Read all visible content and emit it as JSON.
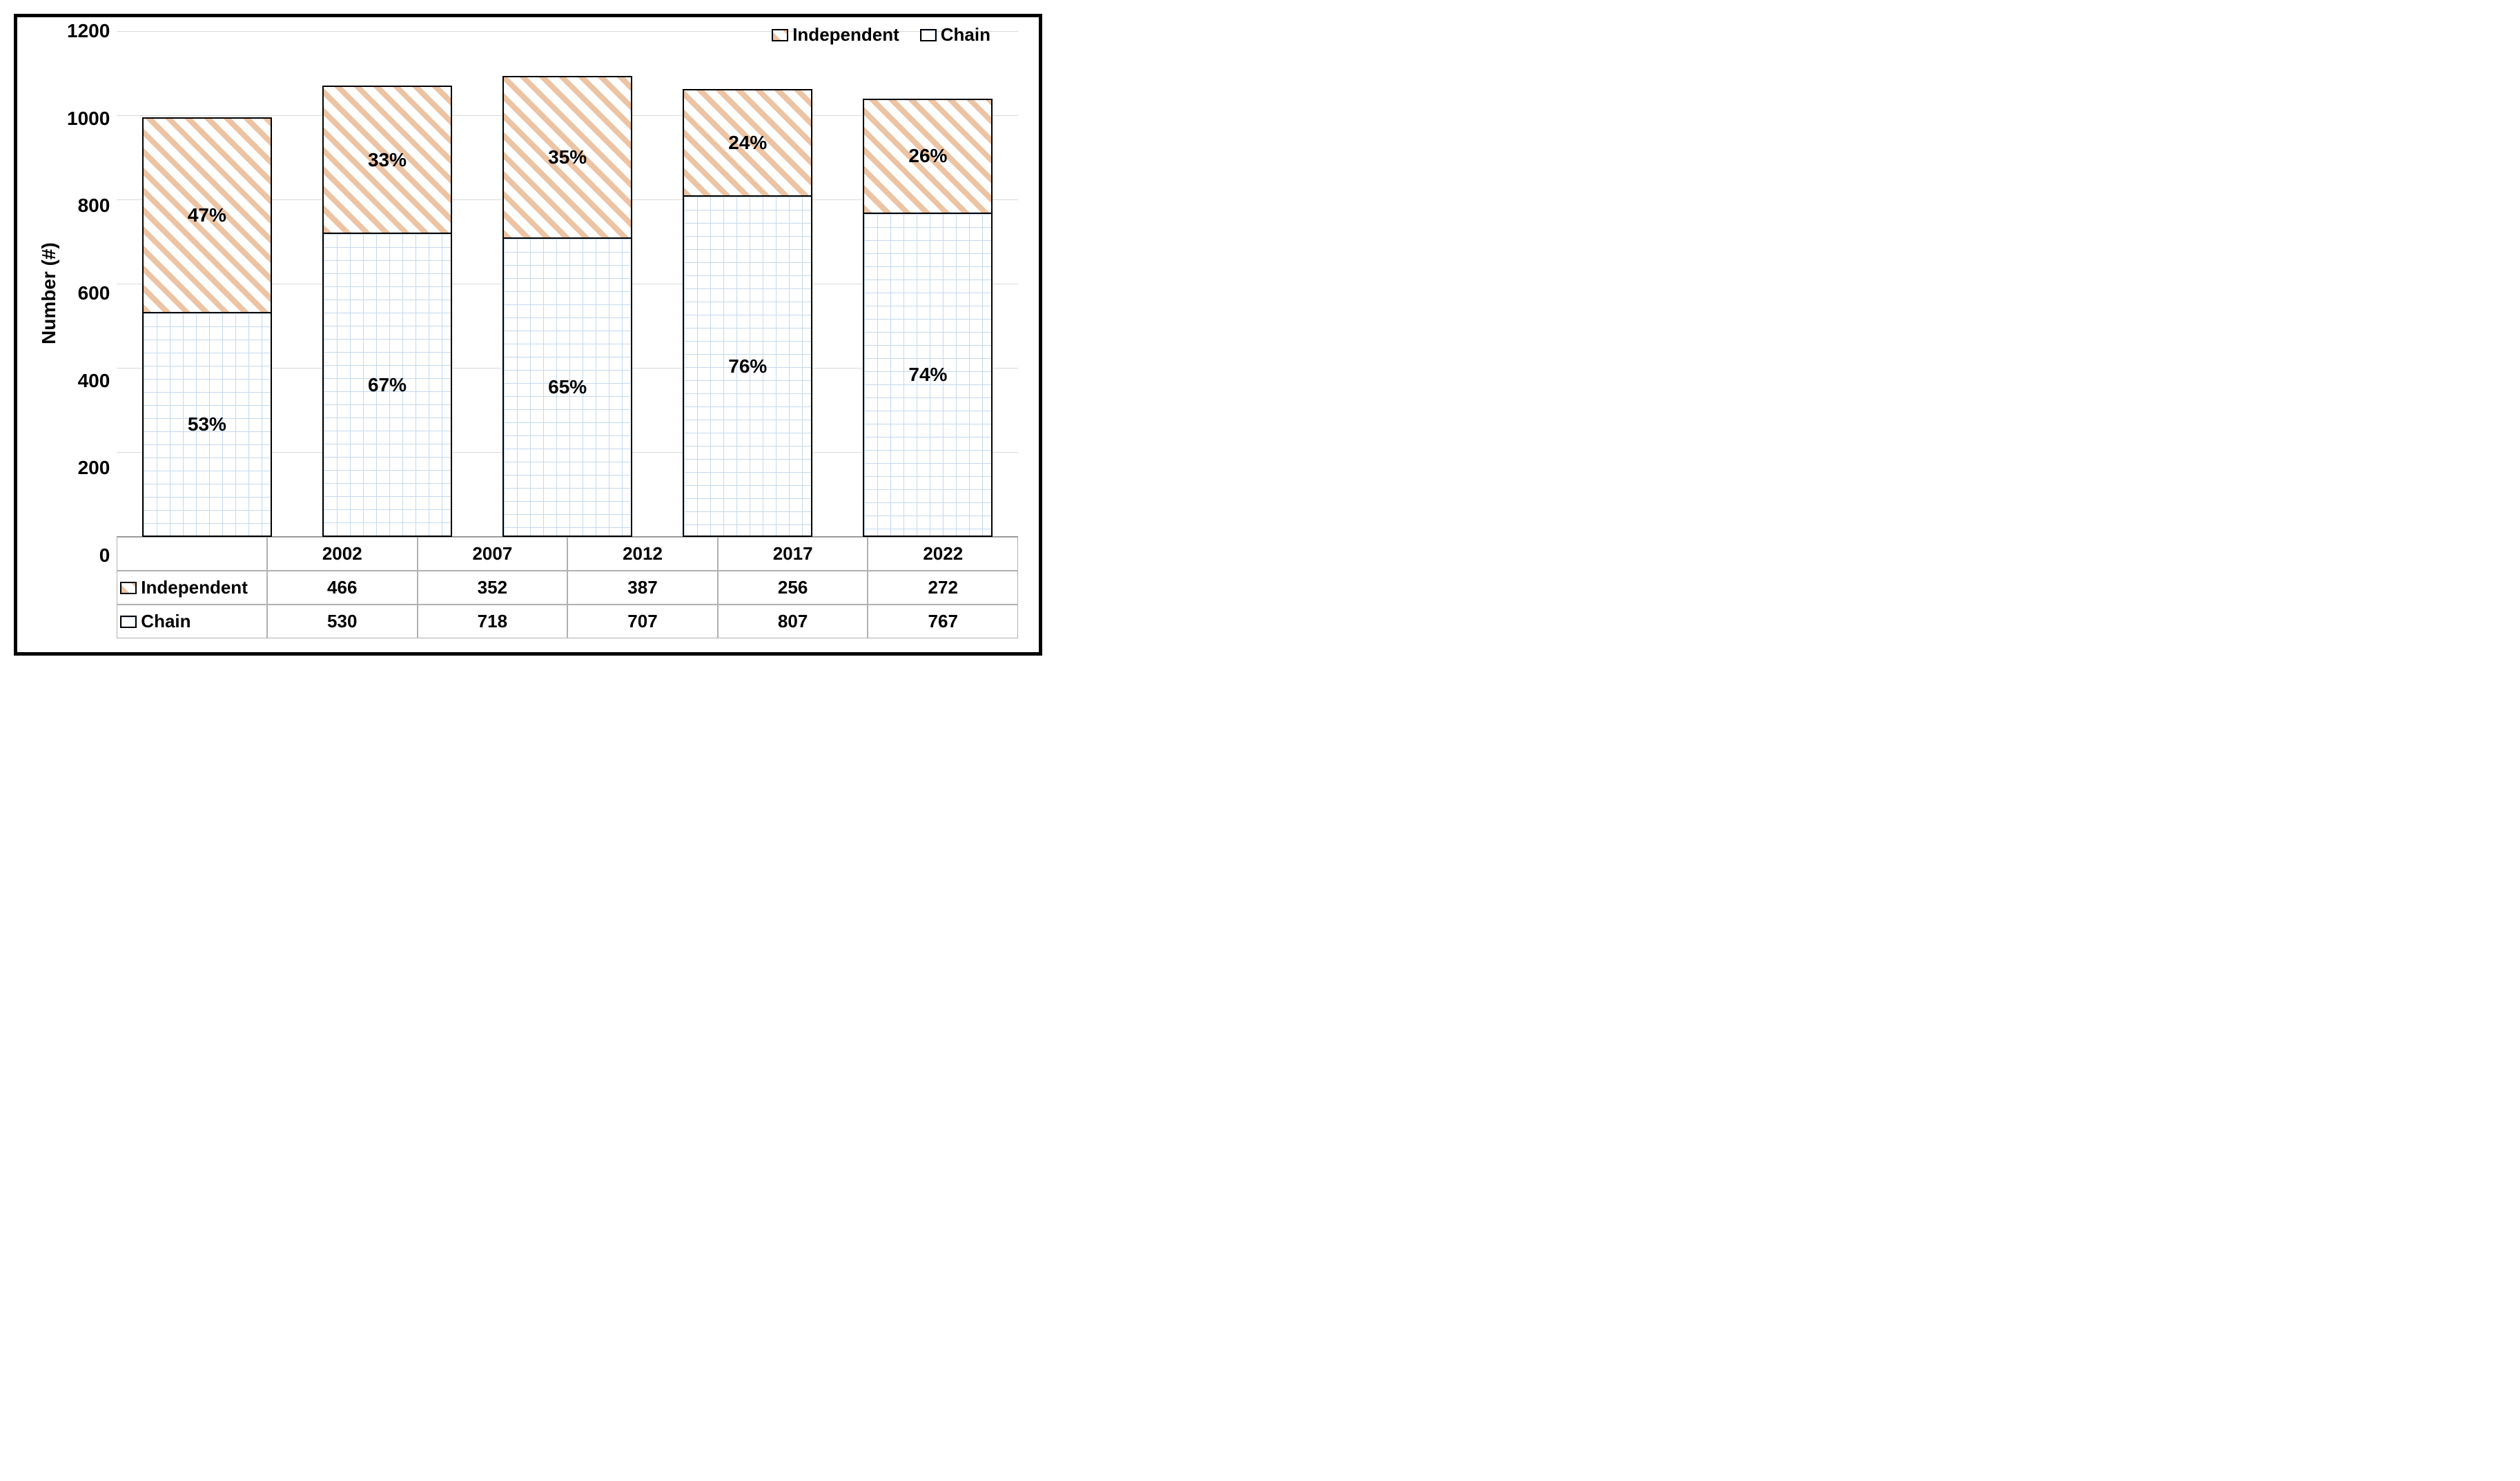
{
  "chart": {
    "type": "stacked-bar",
    "ylabel": "Number (#)",
    "ylim": [
      0,
      1200
    ],
    "ytick_step": 200,
    "yticks": [
      "1200",
      "1000",
      "800",
      "600",
      "400",
      "200",
      "0"
    ],
    "categories": [
      "2002",
      "2007",
      "2012",
      "2017",
      "2022"
    ],
    "series": [
      {
        "name": "Independent",
        "pattern": "diagonal",
        "stroke_color": "#ecc4a4",
        "values": [
          466,
          352,
          387,
          256,
          272
        ],
        "pct_labels": [
          "47%",
          "33%",
          "35%",
          "24%",
          "26%"
        ]
      },
      {
        "name": "Chain",
        "pattern": "grid",
        "stroke_color": "#c5d9ed",
        "values": [
          530,
          718,
          707,
          807,
          767
        ],
        "pct_labels": [
          "53%",
          "67%",
          "65%",
          "76%",
          "74%"
        ]
      }
    ],
    "label_fontsize": 28,
    "tick_fontsize": 28,
    "data_label_fontsize": 28,
    "background_color": "#ffffff",
    "grid_color": "#d9d9d9",
    "axis_color": "#888888",
    "bar_border_color": "#000000",
    "bar_width": 0.72,
    "border_color": "#000000",
    "border_width": 5
  }
}
